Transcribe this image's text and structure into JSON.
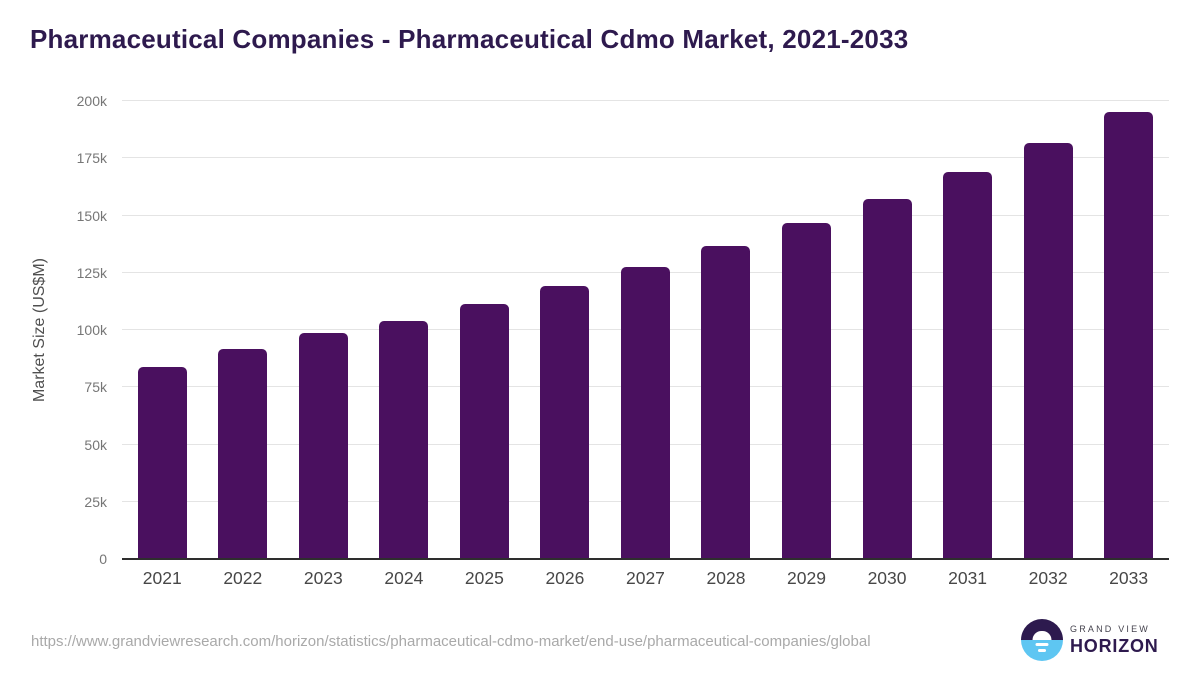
{
  "title": "Pharmaceutical Companies - Pharmaceutical Cdmo Market, 2021-2033",
  "chart_data": {
    "type": "bar",
    "title": "Pharmaceutical Companies - Pharmaceutical Cdmo Market, 2021-2033",
    "categories": [
      "2021",
      "2022",
      "2023",
      "2024",
      "2025",
      "2026",
      "2027",
      "2028",
      "2029",
      "2030",
      "2031",
      "2032",
      "2033"
    ],
    "values": [
      83700,
      91600,
      98500,
      104100,
      111200,
      119200,
      127400,
      136700,
      146600,
      157200,
      168900,
      181700,
      195300
    ],
    "xlabel": "",
    "ylabel": "Market Size (US$M)",
    "ylim": [
      0,
      200000
    ],
    "yticks": [
      0,
      25000,
      50000,
      75000,
      100000,
      125000,
      150000,
      175000,
      200000
    ],
    "ytick_labels": [
      "0",
      "25k",
      "50k",
      "75k",
      "100k",
      "125k",
      "150k",
      "175k",
      "200k"
    ],
    "grid": true,
    "legend": false,
    "bar_color": "#4a105f"
  },
  "footer": {
    "source_url": "https://www.grandviewresearch.com/horizon/statistics/pharmaceutical-cdmo-market/end-use/pharmaceutical-companies/global",
    "logo": {
      "top_text": "GRAND VIEW",
      "bottom_text": "HORIZON"
    }
  },
  "colors": {
    "bar": "#4a105f",
    "title_text": "#2e1a4e",
    "logo_blue": "#5ec6f2",
    "logo_purple": "#2d1a4e",
    "gridline": "#e4e4e4",
    "axis_line": "#2e2e2e"
  }
}
